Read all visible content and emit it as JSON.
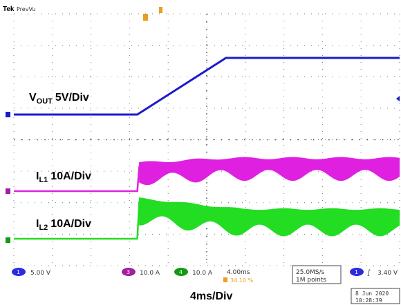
{
  "header": {
    "brand": "Tek",
    "mode": "PrevVu"
  },
  "channels": [
    {
      "id": "1",
      "label": "VOUT",
      "sub": "OUT",
      "main": "V",
      "scale": "5V/Div",
      "readout": "5.00 V",
      "color": "#1a1acc",
      "marker_color": "#1a1acc"
    },
    {
      "id": "3",
      "label": "IL1",
      "sub": "L1",
      "main": "I",
      "scale": "10A/Div",
      "readout": "10.0 A",
      "color": "#e020e0",
      "marker_color": "#a020a0"
    },
    {
      "id": "4",
      "label": "IL2",
      "sub": "L2",
      "main": "I",
      "scale": "10A/Div",
      "readout": "10.0 A",
      "color": "#22dd22",
      "marker_color": "#119911"
    }
  ],
  "bottom_bar": {
    "timebase": "4.00ms",
    "trigger_pos": "34.10 %",
    "sample_rate": "25.0MS/s",
    "record": "1M points",
    "trigger_ch": "1",
    "trigger_level": "3.40 V",
    "date": "8 Jun  2020",
    "time": "10:28:39"
  },
  "time_label": "4ms/Div",
  "chart_data": {
    "type": "line",
    "xlabel": "4ms/Div",
    "grid": true,
    "x_divisions": 10,
    "y_divisions": 8,
    "series": [
      {
        "name": "VOUT 5V/Div",
        "x_div": [
          0,
          3.2,
          5.5,
          10
        ],
        "y_div": [
          0,
          0,
          1.8,
          1.8
        ]
      },
      {
        "name": "IL1 10A/Div",
        "x_div": [
          0,
          3.2,
          3.3,
          5,
          10
        ],
        "y_div": [
          0,
          0,
          0.8,
          0.95,
          0.9
        ]
      },
      {
        "name": "IL2 10A/Div",
        "x_div": [
          0,
          3.2,
          3.3,
          5,
          10
        ],
        "y_div": [
          0,
          0,
          1.2,
          0.85,
          0.85
        ]
      }
    ]
  }
}
